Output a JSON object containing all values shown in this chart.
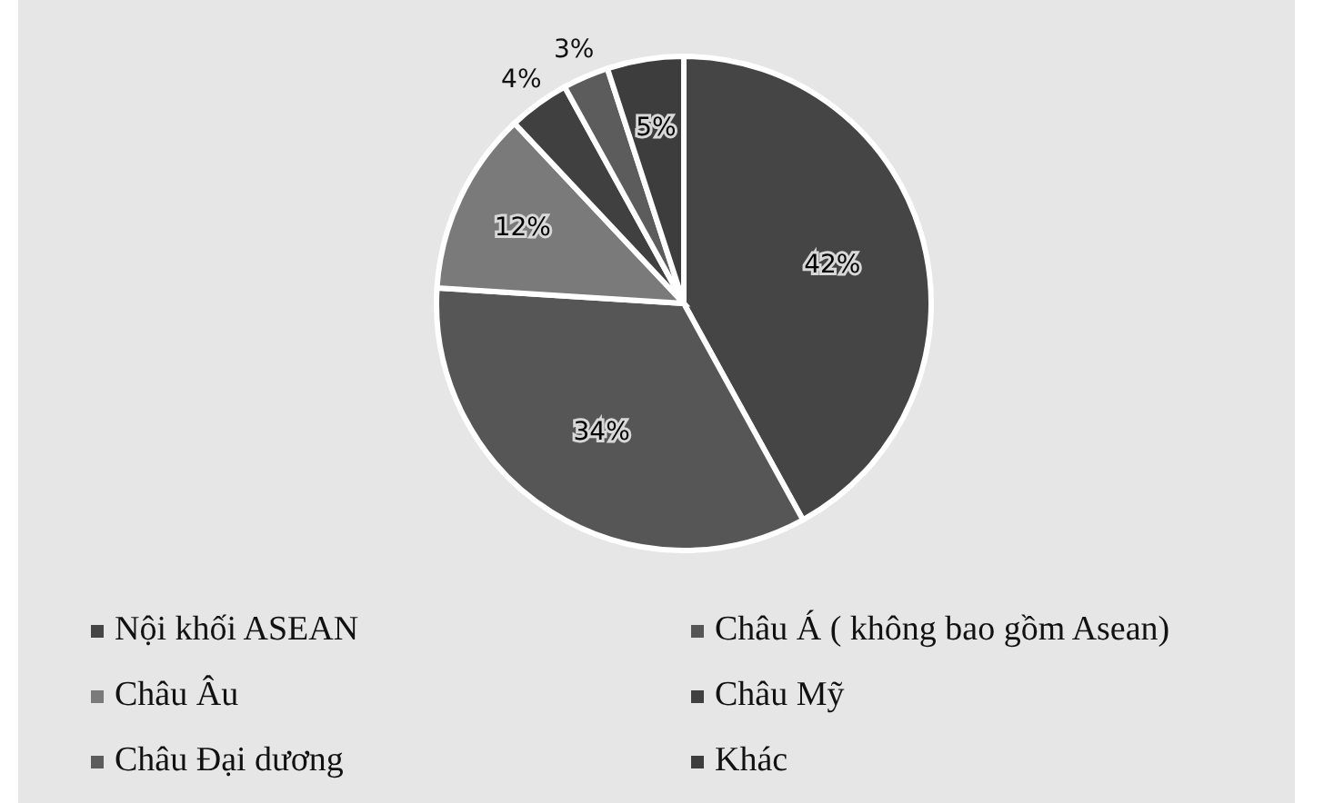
{
  "chart_data": {
    "type": "pie",
    "categories": [
      "Nội khối ASEAN",
      "Châu Á ( không bao gồm Asean)",
      "Châu Âu",
      "Châu Mỹ",
      "Châu Đại dương",
      "Khác"
    ],
    "values": [
      42,
      34,
      12,
      4,
      3,
      5
    ],
    "colors": [
      "#454545",
      "#565656",
      "#7a7a7a",
      "#404040",
      "#5c5c5c",
      "#3d3d3d"
    ],
    "value_labels": [
      "42%",
      "34%",
      "12%",
      "4%",
      "3%",
      "5%"
    ],
    "legend": "bottom"
  }
}
